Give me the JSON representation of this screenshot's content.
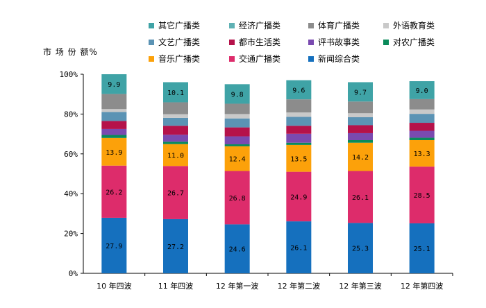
{
  "chart_data": {
    "type": "bar",
    "stacked": true,
    "ylabel": "市 场 份 额%",
    "ylim": [
      0,
      100
    ],
    "yticks": [
      "0%",
      "20%",
      "40%",
      "60%",
      "80%",
      "100%"
    ],
    "categories": [
      "10 年四波",
      "11 年四波",
      "12 年第一波",
      "12 年第二波",
      "12 年第三波",
      "12 年第四波"
    ],
    "legend_position": "top",
    "series": [
      {
        "name": "新闻综合类",
        "color": "#1570be",
        "values": [
          27.9,
          27.2,
          24.6,
          26.1,
          25.3,
          25.1
        ],
        "labeled": true
      },
      {
        "name": "交通广播类",
        "color": "#dd2c6b",
        "values": [
          26.2,
          26.7,
          26.8,
          24.9,
          26.1,
          28.5
        ],
        "labeled": true
      },
      {
        "name": "音乐广播类",
        "color": "#fca10a",
        "values": [
          13.9,
          11.0,
          12.4,
          13.5,
          14.2,
          13.3
        ],
        "labeled": true
      },
      {
        "name": "对农广播类",
        "color": "#0a8a5a",
        "values": [
          1.5,
          1.2,
          1.0,
          1.1,
          1.3,
          1.2
        ],
        "labeled": false
      },
      {
        "name": "评书故事类",
        "color": "#7a4ab0",
        "values": [
          3.0,
          3.5,
          4.0,
          4.5,
          3.5,
          3.5
        ],
        "labeled": false
      },
      {
        "name": "都市生活类",
        "color": "#b5124a",
        "values": [
          4.0,
          4.5,
          4.5,
          4.0,
          4.0,
          4.0
        ],
        "labeled": false
      },
      {
        "name": "文艺广播类",
        "color": "#5b93b4",
        "values": [
          4.5,
          4.0,
          4.5,
          4.5,
          4.0,
          4.5
        ],
        "labeled": false
      },
      {
        "name": "外语教育类",
        "color": "#c9c9c9",
        "values": [
          1.5,
          1.8,
          2.2,
          2.2,
          2.0,
          2.2
        ],
        "labeled": false
      },
      {
        "name": "体育广播类",
        "color": "#8c8c8c",
        "values": [
          7.6,
          6.0,
          5.2,
          6.6,
          5.9,
          5.2
        ],
        "labeled": false
      },
      {
        "name": "其它广播类",
        "color": "#3fa3a6",
        "values": [
          9.9,
          10.1,
          9.8,
          9.6,
          9.7,
          9.0
        ],
        "labeled": true
      }
    ],
    "legend_order": [
      "其它广播类",
      "经济广播类",
      "体育广播类",
      "外语教育类",
      "文艺广播类",
      "都市生活类",
      "评书故事类",
      "对农广播类",
      "音乐广播类",
      "交通广播类",
      "新闻综合类"
    ],
    "legend_colors": {
      "其它广播类": "#3fa3a6",
      "经济广播类": "#5fb1b4",
      "体育广播类": "#8c8c8c",
      "外语教育类": "#c9c9c9",
      "文艺广播类": "#5b93b4",
      "都市生活类": "#b5124a",
      "评书故事类": "#7a4ab0",
      "对农广播类": "#0a8a5a",
      "音乐广播类": "#fca10a",
      "交通广播类": "#dd2c6b",
      "新闻综合类": "#1570be"
    }
  }
}
